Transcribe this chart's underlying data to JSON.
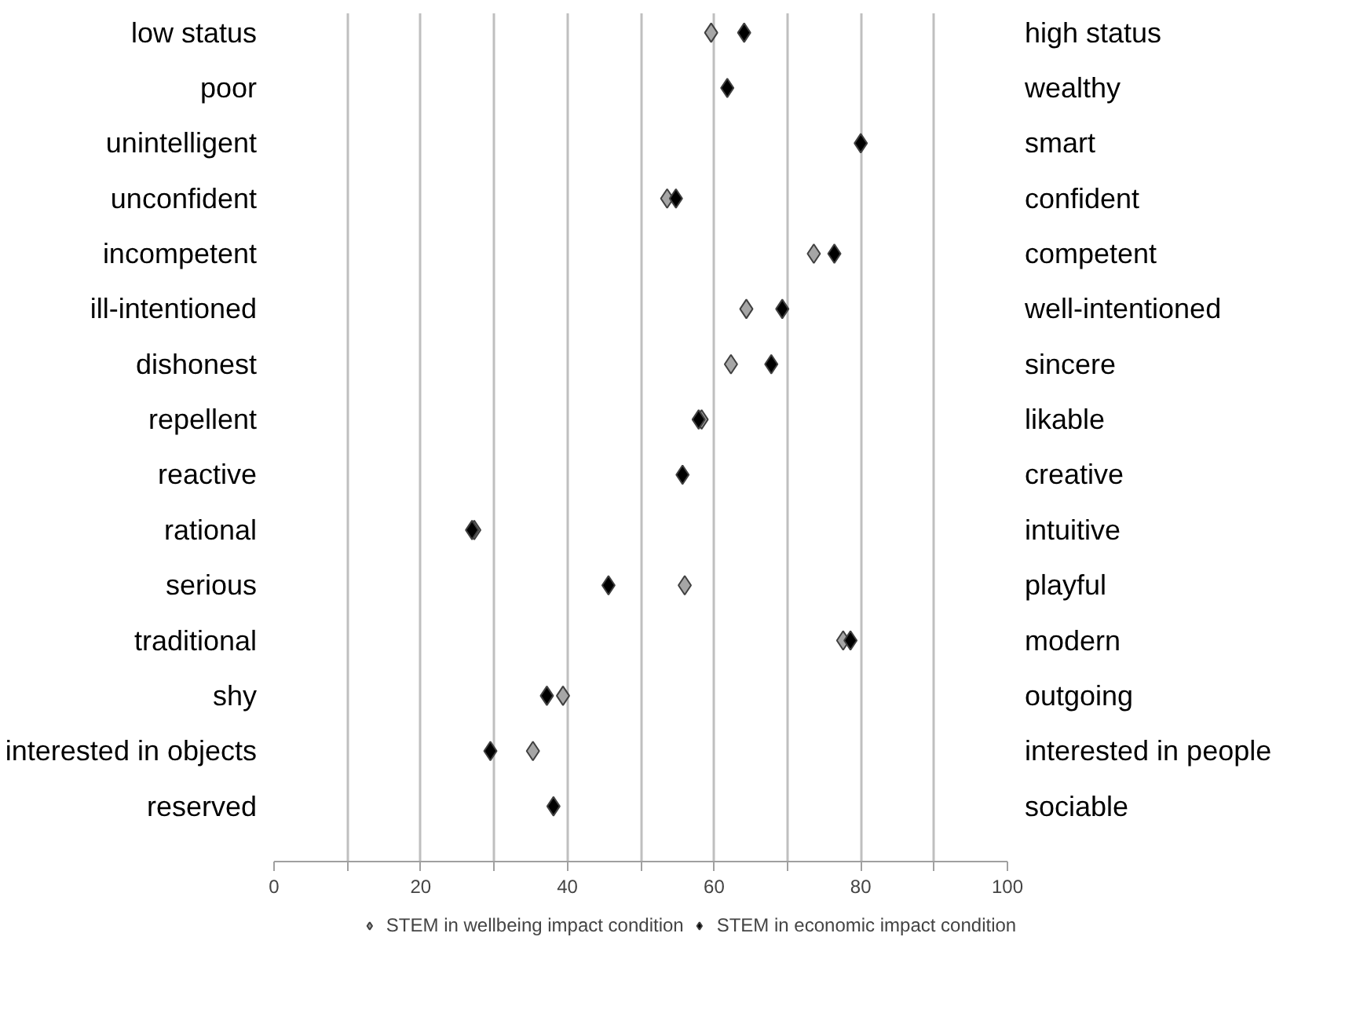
{
  "chart_data": {
    "type": "scatter",
    "orientation": "horizontal",
    "categories": [
      "low status",
      "poor",
      "unintelligent",
      "unconfident",
      "incompetent",
      "ill-intentioned",
      "dishonest",
      "repellent",
      "reactive",
      "rational",
      "serious",
      "traditional",
      "shy",
      "interested in objects",
      "reserved"
    ],
    "y2_categories": [
      "high status",
      "wealthy",
      "smart",
      "confident",
      "competent",
      "well-intentioned",
      "sincere",
      "likable",
      "creative",
      "intuitive",
      "playful",
      "modern",
      "outgoing",
      "interested in people",
      "sociable"
    ],
    "series": [
      {
        "name": "STEM in wellbeing impact condition",
        "color": "#a6a6a6",
        "values": [
          59.6,
          null,
          null,
          53.6,
          73.6,
          64.4,
          62.3,
          58.3,
          null,
          27.3,
          56.0,
          77.6,
          39.4,
          35.3,
          null
        ]
      },
      {
        "name": "STEM in economic impact condition",
        "color": "#000000",
        "values": [
          64.1,
          61.8,
          80.0,
          54.8,
          76.4,
          69.3,
          67.8,
          57.9,
          55.7,
          27.0,
          45.6,
          78.6,
          37.2,
          29.5,
          38.1
        ]
      }
    ],
    "xlim": [
      0,
      100
    ],
    "xticks": [
      0,
      {
        "value": 10,
        "label": null
      },
      20,
      {
        "value": 30,
        "label": null
      },
      40,
      {
        "value": 50,
        "label": null
      },
      60,
      {
        "value": 70,
        "label": null
      },
      80,
      {
        "value": 90,
        "label": null
      },
      100
    ],
    "grid": "x",
    "legend": "bottom",
    "marker": "diamond"
  }
}
